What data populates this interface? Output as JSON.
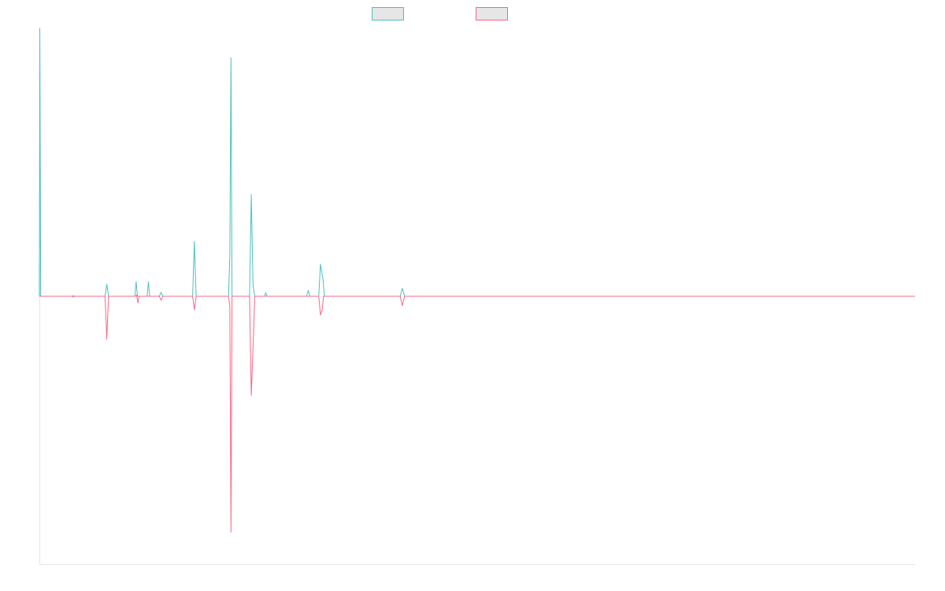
{
  "chart_data": {
    "type": "line",
    "title": "",
    "xlabel": "",
    "ylabel": "",
    "legend_position": "top-center",
    "grid": false,
    "x_range": [
      0,
      1000
    ],
    "ylim": [
      -100,
      100
    ],
    "series": [
      {
        "color": "#4bc0c0",
        "legend_fill": "#e6e6e6",
        "points": [
          [
            0,
            0
          ],
          [
            0.5,
            100
          ],
          [
            1.5,
            0
          ],
          [
            37,
            0
          ],
          [
            38.5,
            0.3
          ],
          [
            40,
            0
          ],
          [
            75,
            0
          ],
          [
            77,
            4.5
          ],
          [
            79,
            0
          ],
          [
            109,
            0
          ],
          [
            110.5,
            5.5
          ],
          [
            112,
            0
          ],
          [
            123,
            0
          ],
          [
            124.5,
            5.4
          ],
          [
            126,
            0
          ],
          [
            137,
            0
          ],
          [
            139,
            1.5
          ],
          [
            141,
            0
          ],
          [
            175,
            0
          ],
          [
            177,
            20.5
          ],
          [
            179,
            0
          ],
          [
            216,
            0
          ],
          [
            217.5,
            15
          ],
          [
            218.8,
            89
          ],
          [
            220,
            0
          ],
          [
            240,
            0
          ],
          [
            242,
            38
          ],
          [
            244,
            4
          ],
          [
            246,
            0
          ],
          [
            257,
            0
          ],
          [
            258.5,
            1.3
          ],
          [
            260,
            0
          ],
          [
            305,
            0
          ],
          [
            307,
            2.2
          ],
          [
            309,
            0
          ],
          [
            319,
            0
          ],
          [
            321,
            12
          ],
          [
            324,
            6
          ],
          [
            325.5,
            0
          ],
          [
            412,
            0
          ],
          [
            414.5,
            3
          ],
          [
            417,
            0
          ],
          [
            1000,
            0
          ]
        ]
      },
      {
        "color": "#ff6384",
        "legend_fill": "#e6e6e6",
        "points": [
          [
            0,
            0
          ],
          [
            37,
            0
          ],
          [
            38.5,
            -0.3
          ],
          [
            40,
            0
          ],
          [
            75,
            0
          ],
          [
            77,
            -16
          ],
          [
            79,
            0
          ],
          [
            110,
            0
          ],
          [
            111,
            0.5
          ],
          [
            112.5,
            -2.5
          ],
          [
            114,
            0
          ],
          [
            137,
            0
          ],
          [
            139,
            -1.5
          ],
          [
            141,
            0
          ],
          [
            175,
            0
          ],
          [
            177,
            -5
          ],
          [
            179,
            0
          ],
          [
            216,
            0
          ],
          [
            217.5,
            -4
          ],
          [
            218.8,
            -88
          ],
          [
            220,
            0
          ],
          [
            240,
            0
          ],
          [
            242,
            -37
          ],
          [
            246,
            0
          ],
          [
            319,
            0
          ],
          [
            321,
            -7
          ],
          [
            323,
            -5
          ],
          [
            324.5,
            0
          ],
          [
            412,
            0
          ],
          [
            414.5,
            -3.5
          ],
          [
            417,
            0
          ],
          [
            1000,
            0
          ]
        ]
      }
    ]
  }
}
